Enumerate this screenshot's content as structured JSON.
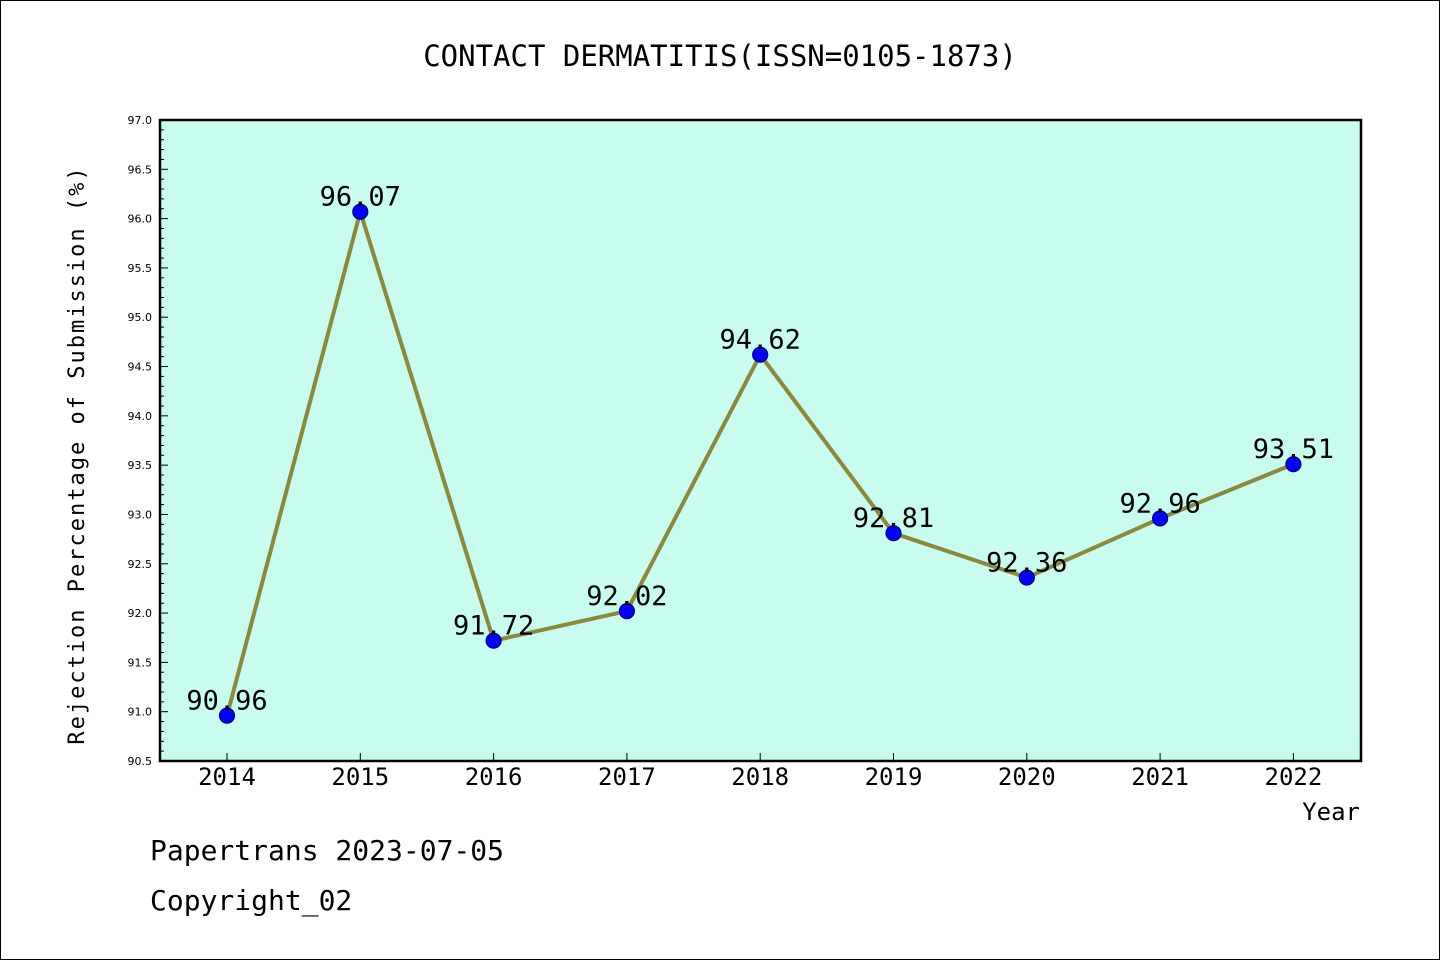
{
  "chart_data": {
    "type": "line",
    "title": "CONTACT DERMATITIS(ISSN=0105-1873)",
    "xlabel": "Year",
    "ylabel": "Rejection Percentage of Submission (%)",
    "categories": [
      "2014",
      "2015",
      "2016",
      "2017",
      "2018",
      "2019",
      "2020",
      "2021",
      "2022"
    ],
    "values": [
      90.96,
      96.07,
      91.72,
      92.02,
      94.62,
      92.81,
      92.36,
      92.96,
      93.51
    ],
    "value_labels": [
      "90.96",
      "96.07",
      "91.72",
      "92.02",
      "94.62",
      "92.81",
      "92.36",
      "92.96",
      "93.51"
    ],
    "ylim": [
      90.5,
      97.0
    ],
    "yticks": [
      "90.5",
      "91.0",
      "91.5",
      "92.0",
      "92.5",
      "93.0",
      "93.5",
      "94.0",
      "94.5",
      "95.0",
      "95.5",
      "96.0",
      "96.5",
      "97.0"
    ],
    "grid": false,
    "legend": "none",
    "colors": {
      "plot_background": "#c8fcee",
      "line": "#8b8a3c",
      "marker": "#0000ff",
      "marker_edge": "#000080"
    }
  },
  "footer": {
    "line1": "Papertrans 2023-07-05",
    "line2": "Copyright_02"
  }
}
